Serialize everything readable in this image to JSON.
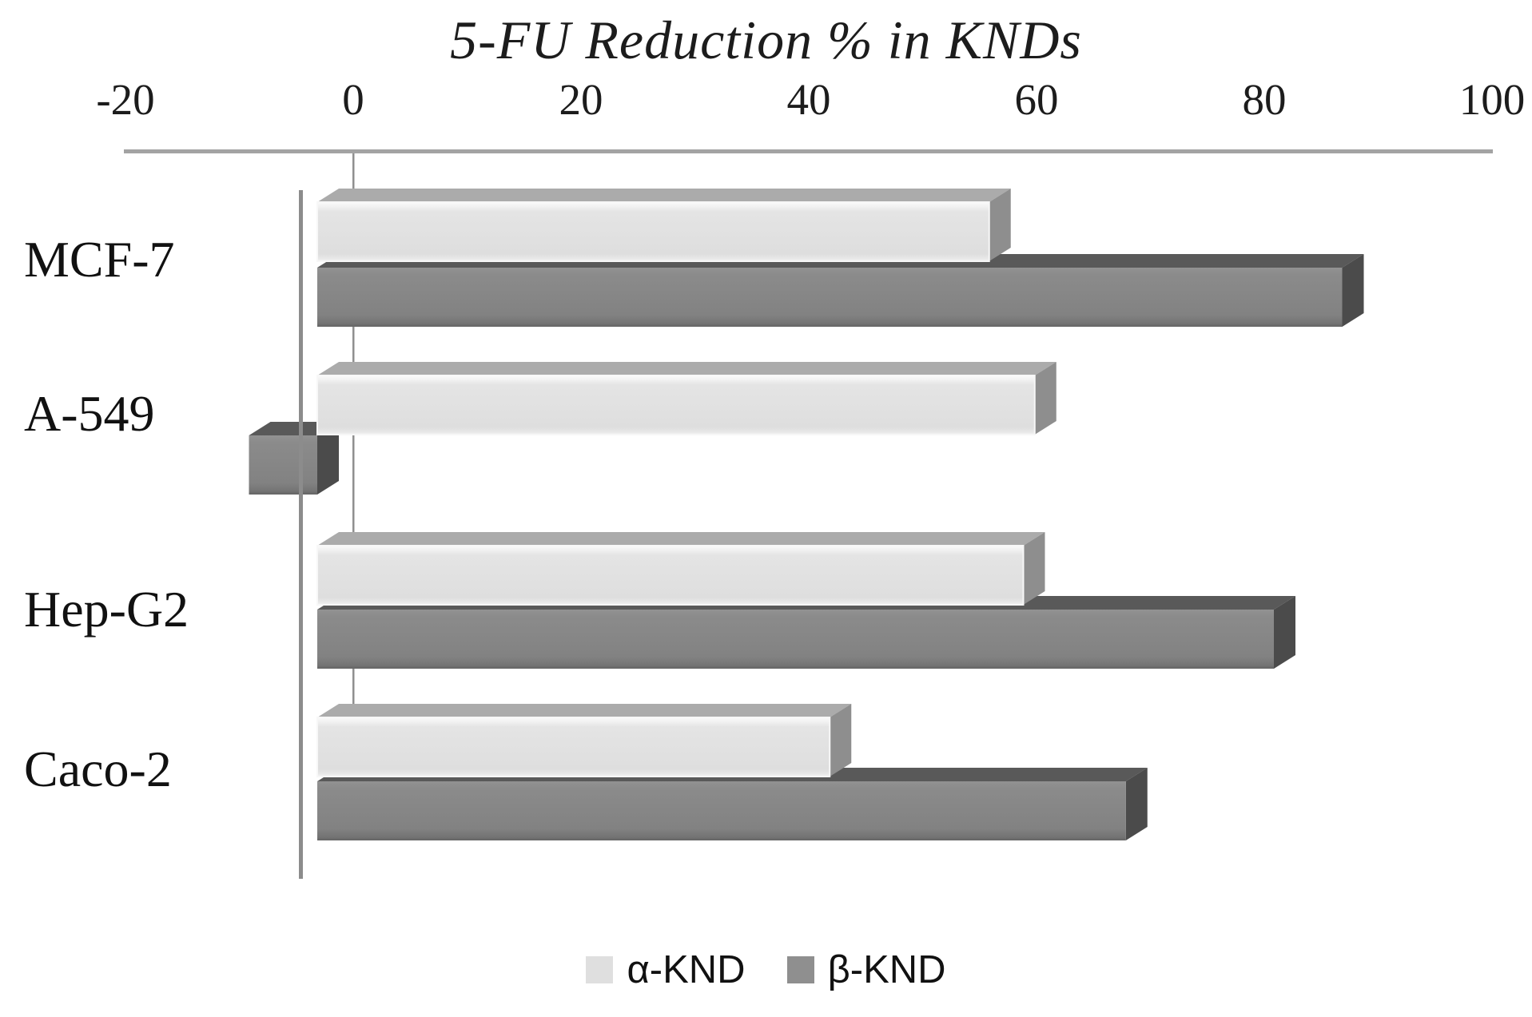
{
  "chart_data": {
    "type": "bar",
    "orientation": "horizontal",
    "style": "3d",
    "title": "5-FU Reduction % in KNDs",
    "categories": [
      "MCF-7",
      "A-549",
      "Hep-G2",
      "Caco-2"
    ],
    "series": [
      {
        "name": "α-KND",
        "values": [
          59,
          63,
          62,
          45
        ],
        "color": "#dfdfdf"
      },
      {
        "name": "β-KND",
        "values": [
          90,
          -6,
          84,
          71
        ],
        "color": "#8f8f8f"
      }
    ],
    "x_ticks": [
      -20,
      0,
      20,
      40,
      60,
      80,
      100
    ],
    "xlim": [
      -20,
      100
    ],
    "xlabel": "",
    "ylabel": "",
    "grid": false,
    "gridline_at_zero": true,
    "axis_color": "#a3a3a3",
    "legend_position": "bottom"
  }
}
